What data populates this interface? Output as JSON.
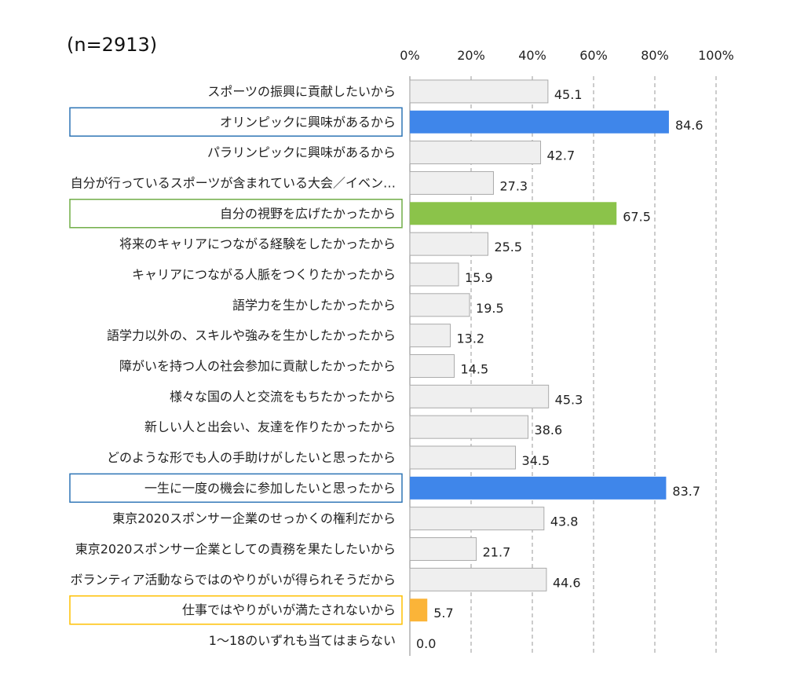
{
  "sample_size_label": "(n=2913)",
  "colors": {
    "default_bar": "#efefef",
    "default_bar_border": "#aaaaaa",
    "blue": "#3f86ea",
    "green": "#8bc34a",
    "orange": "#fbb438",
    "box_blue": "#2e75b6",
    "box_green": "#70ad47",
    "box_orange": "#ffc000",
    "grid": "#999999"
  },
  "chart_data": {
    "type": "bar",
    "orientation": "horizontal",
    "title": "",
    "xlabel": "",
    "ylabel": "",
    "xlim": [
      0,
      100
    ],
    "grid": true,
    "ticks": [
      "0%",
      "20%",
      "40%",
      "60%",
      "80%",
      "100%"
    ],
    "tick_values": [
      0,
      20,
      40,
      60,
      80,
      100
    ],
    "categories": [
      "スポーツの振興に貢献したいから",
      "オリンピックに興味があるから",
      "パラリンピックに興味があるから",
      "自分が行っているスポーツが含まれている大会／イベン…",
      "自分の視野を広げたかったから",
      "将来のキャリアにつながる経験をしたかったから",
      "キャリアにつながる人脈をつくりたかったから",
      "語学力を生かしたかったから",
      "語学力以外の、スキルや強みを生かしたかったから",
      "障がいを持つ人の社会参加に貢献したかったから",
      "様々な国の人と交流をもちたかったから",
      "新しい人と出会い、友達を作りたかったから",
      "どのような形でも人の手助けがしたいと思ったから",
      "一生に一度の機会に参加したいと思ったから",
      "東京2020スポンサー企業のせっかくの権利だから",
      "東京2020スポンサー企業としての責務を果たしたいから",
      "ボランティア活動ならではのやりがいが得られそうだから",
      "仕事ではやりがいが満たされないから",
      "1～18のいずれも当てはまらない"
    ],
    "values": [
      45.1,
      84.6,
      42.7,
      27.3,
      67.5,
      25.5,
      15.9,
      19.5,
      13.2,
      14.5,
      45.3,
      38.6,
      34.5,
      83.7,
      43.8,
      21.7,
      44.6,
      5.7,
      0.0
    ],
    "value_labels": [
      "45.1",
      "84.6",
      "42.7",
      "27.3",
      "67.5",
      "25.5",
      "15.9",
      "19.5",
      "13.2",
      "14.5",
      "45.3",
      "38.6",
      "34.5",
      "83.7",
      "43.8",
      "21.7",
      "44.6",
      "5.7",
      "0.0"
    ],
    "highlights": [
      {
        "index": 1,
        "bar_color": "blue",
        "box_color": "box_blue"
      },
      {
        "index": 4,
        "bar_color": "green",
        "box_color": "box_green"
      },
      {
        "index": 13,
        "bar_color": "blue",
        "box_color": "box_blue"
      },
      {
        "index": 17,
        "bar_color": "orange",
        "box_color": "box_orange"
      }
    ]
  }
}
